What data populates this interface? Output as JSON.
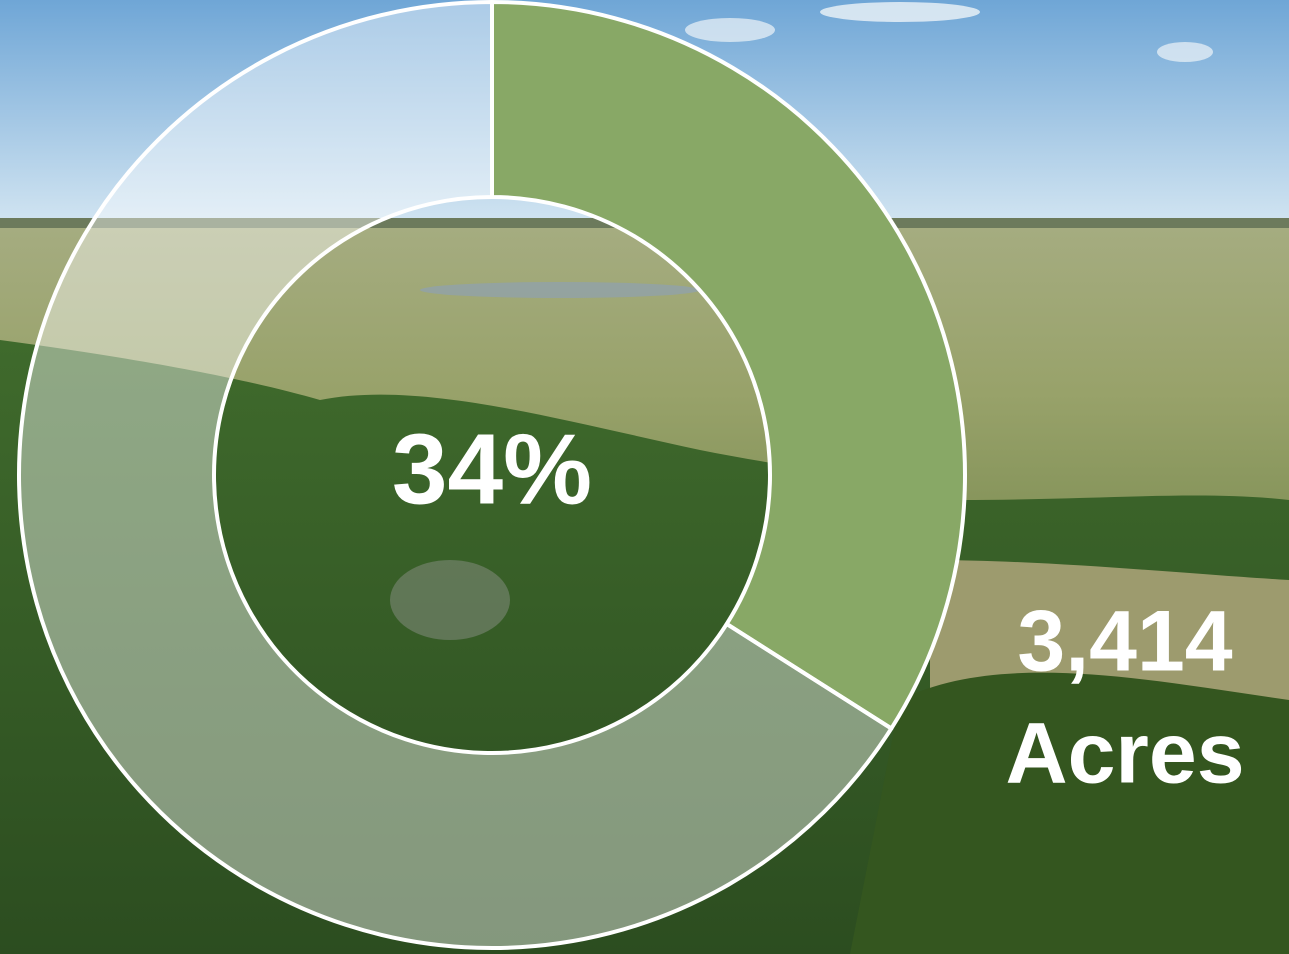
{
  "chart_data": {
    "type": "donut",
    "values": [
      34,
      66
    ],
    "value_labels": [
      "34%",
      null
    ],
    "colors": [
      "#88a866",
      "rgba(255,255,255,0.42)"
    ],
    "annotation": [
      "3,414",
      "Acres"
    ]
  }
}
